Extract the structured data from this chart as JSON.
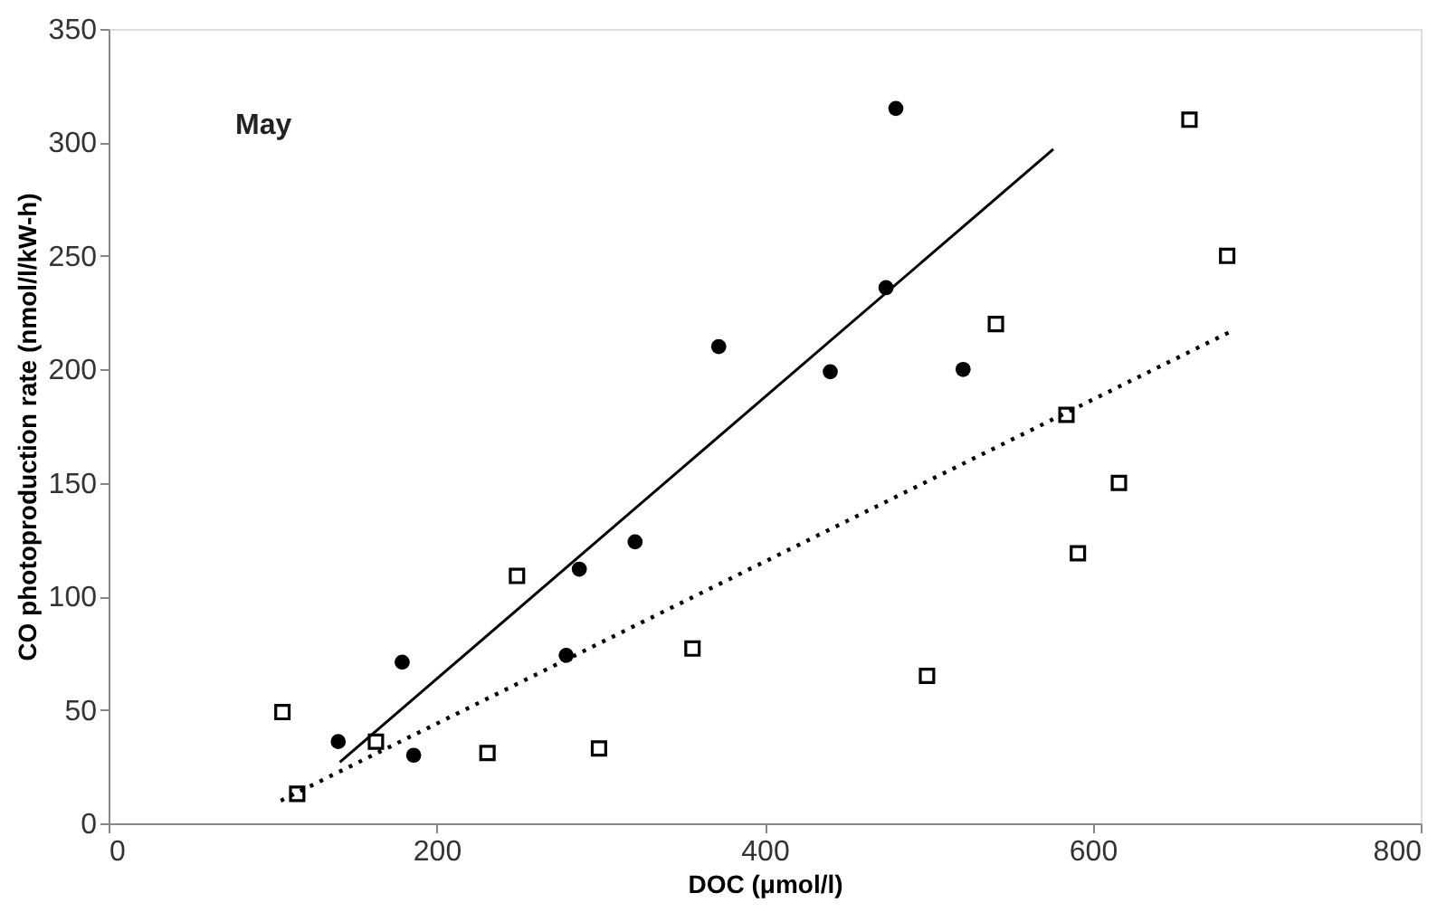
{
  "chart_data": {
    "type": "scatter",
    "xlabel": "DOC (μmol/l)",
    "ylabel": "CO photoproduction rate (nmol/l/kW-h)",
    "annotations": [
      "May"
    ],
    "xlim": [
      0,
      800
    ],
    "xticks": [
      0,
      200,
      400,
      600,
      800
    ],
    "ylim": [
      0,
      350
    ],
    "yticks": [
      0,
      50,
      100,
      150,
      200,
      250,
      300,
      350
    ],
    "grid": false,
    "series": [
      {
        "marker": "circle",
        "color": "#000000",
        "x": [
          140,
          179,
          186,
          279,
          287,
          321,
          372,
          440,
          474,
          480,
          521
        ],
        "values": [
          36,
          71,
          30,
          74,
          112,
          124,
          210,
          199,
          236,
          315,
          200
        ]
      },
      {
        "marker": "square",
        "color": "#000000",
        "x": [
          106,
          115,
          163,
          231,
          249,
          299,
          356,
          499,
          541,
          584,
          591,
          616,
          659,
          682
        ],
        "values": [
          49,
          13,
          36,
          31,
          109,
          33,
          77,
          65,
          220,
          180,
          119,
          150,
          310,
          250
        ]
      },
      {
        "type": "line",
        "line_style": "solid",
        "color": "#000000",
        "x": [
          141,
          576
        ],
        "values": [
          27,
          297
        ]
      },
      {
        "type": "line",
        "line_style": "dotted",
        "color": "#000000",
        "x": [
          105,
          685
        ],
        "values": [
          10,
          217
        ]
      }
    ]
  }
}
